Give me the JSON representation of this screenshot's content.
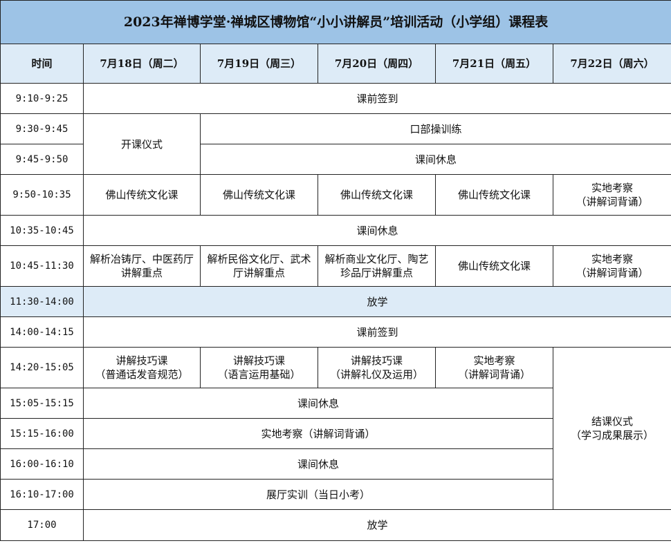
{
  "title": "2023年禅博学堂·禅城区博物馆“小小讲解员”培训活动（小学组）课程表",
  "header": [
    "时间",
    "7月18日（周二）",
    "7月19日（周三）",
    "7月20日（周四）",
    "7月21日（周五）",
    "7月22日（周六）"
  ],
  "times": [
    "9:10-9:25",
    "9:30-9:45",
    "9:45-9:50",
    "9:50-10:35",
    "10:35-10:45",
    "10:45-11:30",
    "11:30-14:00",
    "14:00-14:15",
    "14:20-15:05",
    "15:05-15:15",
    "15:15-16:00",
    "16:00-16:10",
    "16:10-17:00",
    "17:00"
  ],
  "cells": {
    "checkin": "课前签到",
    "opening": "开课仪式",
    "oral": "口部操训练",
    "break": "课间休息",
    "foshan": "佛山传统文化课",
    "field": "实地考察",
    "field_sub": "（讲解词背诵）",
    "r6c1a": "解析冶铸厅、中医药厅",
    "r6c1b": "讲解重点",
    "r6c2a": "解析民俗文化厅、武术",
    "r6c2b": "厅讲解重点",
    "r6c3a": "解析商业文化厅、陶艺",
    "r6c3b": "珍品厅讲解重点",
    "dismiss": "放学",
    "skill": "讲解技巧课",
    "skill1": "（普通话发音规范）",
    "skill2": "（语言运用基础）",
    "skill3": "（讲解礼仪及运用）",
    "closing": "结课仪式",
    "closing_sub": "（学习成果展示）",
    "field_full": "实地考察（讲解词背诵）",
    "hall": "展厅实训（当日小考）"
  }
}
